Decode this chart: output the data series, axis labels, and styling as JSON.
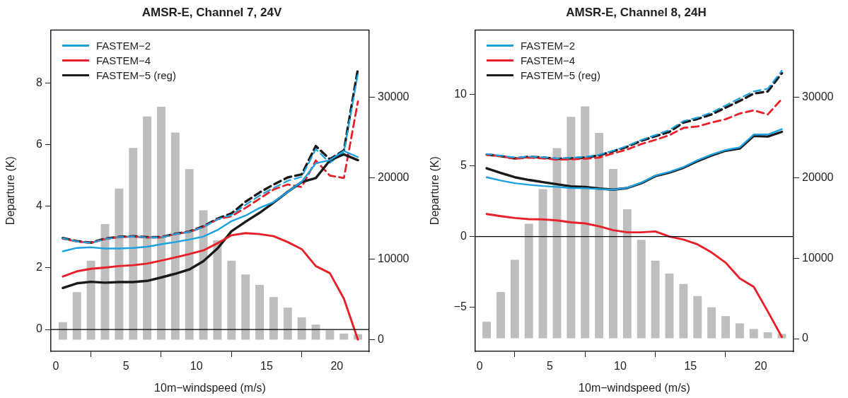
{
  "chart_data": [
    {
      "type": "line",
      "title": "AMSR-E, Channel 7, 24V",
      "xlabel": "10m−windspeed (m/s)",
      "ylabel": "Departure (K)",
      "x": [
        0.5,
        1.5,
        2.5,
        3.5,
        4.5,
        5.5,
        6.5,
        7.5,
        8.5,
        9.5,
        10.5,
        11.5,
        12.5,
        13.5,
        14.5,
        15.5,
        16.5,
        17.5,
        18.5,
        19.5,
        20.5,
        21.5
      ],
      "xlim": [
        -0.35,
        22.3
      ],
      "xticks": [
        0,
        5,
        10,
        15,
        20
      ],
      "ylim": [
        -0.71,
        9.73
      ],
      "yticks": [
        0,
        2,
        4,
        6,
        8
      ],
      "y2lim": [
        -1400,
        38270
      ],
      "y2ticks": [
        0,
        10000,
        20000,
        30000
      ],
      "grid": false,
      "marker": "none",
      "legend": "top left",
      "ref_lines": [
        {
          "axis": "y",
          "value": 0,
          "color": "#000000"
        }
      ],
      "series": [
        {
          "type": "bar",
          "axis": "y2",
          "color": "#bebebe",
          "values": [
            2200,
            5900,
            9800,
            14300,
            18700,
            23700,
            27600,
            28800,
            25600,
            21100,
            16000,
            12300,
            9800,
            8100,
            6800,
            5300,
            4000,
            2800,
            1900,
            1200,
            800,
            700
          ]
        },
        {
          "name": "FASTEM−2",
          "color": "#1ba1e2",
          "line_style": "solid",
          "values": [
            2.54,
            2.65,
            2.67,
            2.63,
            2.63,
            2.65,
            2.69,
            2.77,
            2.84,
            2.92,
            3.02,
            3.23,
            3.52,
            3.7,
            3.95,
            4.14,
            4.47,
            4.8,
            5.4,
            5.5,
            5.8,
            5.6
          ]
        },
        {
          "name": "FASTEM−4",
          "color": "#e8202a",
          "line_style": "solid",
          "values": [
            1.72,
            1.89,
            1.97,
            2.01,
            2.06,
            2.09,
            2.14,
            2.24,
            2.34,
            2.45,
            2.57,
            2.8,
            3.06,
            3.13,
            3.1,
            3.03,
            2.84,
            2.61,
            2.06,
            1.83,
            1.0,
            -0.33
          ]
        },
        {
          "name": "FASTEM−5 (reg)",
          "color": "#1a1a1a",
          "line_style": "solid",
          "values": [
            1.35,
            1.5,
            1.55,
            1.52,
            1.54,
            1.54,
            1.58,
            1.69,
            1.81,
            1.95,
            2.22,
            2.63,
            3.19,
            3.5,
            3.79,
            4.12,
            4.47,
            4.79,
            4.92,
            5.49,
            5.69,
            5.5
          ]
        },
        {
          "color": "#1ba1e2",
          "line_style": "dashed",
          "values": [
            2.96,
            2.86,
            2.81,
            2.94,
            3.0,
            3.02,
            2.99,
            2.99,
            3.1,
            3.17,
            3.33,
            3.58,
            3.72,
            4.05,
            4.35,
            4.6,
            4.83,
            4.96,
            5.86,
            5.41,
            5.77,
            8.31
          ]
        },
        {
          "color": "#e8202a",
          "line_style": "dashed",
          "values": [
            2.95,
            2.86,
            2.81,
            2.94,
            3.0,
            3.02,
            2.99,
            2.99,
            3.1,
            3.17,
            3.33,
            3.58,
            3.68,
            3.95,
            4.25,
            4.55,
            4.71,
            4.63,
            5.49,
            5.0,
            4.92,
            7.41
          ]
        },
        {
          "color": "#1a1a1a",
          "line_style": "dashed",
          "values": [
            2.97,
            2.87,
            2.82,
            2.95,
            3.01,
            3.03,
            3.0,
            3.0,
            3.11,
            3.18,
            3.35,
            3.6,
            3.77,
            4.15,
            4.45,
            4.71,
            4.94,
            5.04,
            5.96,
            5.53,
            5.82,
            8.47
          ]
        }
      ]
    },
    {
      "type": "line",
      "title": "AMSR-E, Channel 8, 24H",
      "xlabel": "10m−windspeed (m/s)",
      "ylabel": "Departure (K)",
      "x": [
        0.5,
        1.5,
        2.5,
        3.5,
        4.5,
        5.5,
        6.5,
        7.5,
        8.5,
        9.5,
        10.5,
        11.5,
        12.5,
        13.5,
        14.5,
        15.5,
        16.5,
        17.5,
        18.5,
        19.5,
        20.5,
        21.5
      ],
      "xlim": [
        -0.31,
        22.33
      ],
      "xticks": [
        0,
        5,
        10,
        15,
        20
      ],
      "ylim": [
        -8.09,
        14.56
      ],
      "yticks": [
        -5,
        0,
        5,
        10
      ],
      "y2lim": [
        -1580,
        38400
      ],
      "y2ticks": [
        0,
        10000,
        20000,
        30000
      ],
      "grid": false,
      "marker": "none",
      "legend": "top left",
      "ref_lines": [
        {
          "axis": "y",
          "value": 0,
          "color": "#000000"
        }
      ],
      "series": [
        {
          "type": "bar",
          "axis": "y2",
          "color": "#bebebe",
          "values": [
            2100,
            5800,
            9800,
            14300,
            18600,
            23700,
            27600,
            28900,
            25600,
            21100,
            16100,
            12300,
            9700,
            8100,
            6800,
            5300,
            3900,
            2800,
            1900,
            1200,
            800,
            600
          ]
        },
        {
          "name": "FASTEM−2",
          "color": "#1ba1e2",
          "line_style": "solid",
          "values": [
            4.18,
            3.95,
            3.76,
            3.65,
            3.56,
            3.5,
            3.42,
            3.4,
            3.35,
            3.31,
            3.44,
            3.8,
            4.3,
            4.56,
            4.9,
            5.38,
            5.78,
            6.1,
            6.29,
            7.19,
            7.19,
            7.57
          ]
        },
        {
          "name": "FASTEM−4",
          "color": "#e8202a",
          "line_style": "solid",
          "values": [
            1.59,
            1.44,
            1.31,
            1.23,
            1.21,
            1.14,
            1.0,
            0.93,
            0.72,
            0.45,
            0.3,
            0.3,
            0.36,
            0.0,
            -0.21,
            -0.55,
            -1.12,
            -1.84,
            -2.95,
            -3.54,
            -5.28,
            -7.08
          ]
        },
        {
          "name": "FASTEM−5 (reg)",
          "color": "#1a1a1a",
          "line_style": "solid",
          "values": [
            4.81,
            4.49,
            4.18,
            3.99,
            3.84,
            3.69,
            3.54,
            3.5,
            3.38,
            3.31,
            3.42,
            3.76,
            4.26,
            4.51,
            4.85,
            5.32,
            5.72,
            6.05,
            6.2,
            7.09,
            7.05,
            7.38
          ]
        },
        {
          "color": "#1ba1e2",
          "line_style": "dashed",
          "values": [
            5.82,
            5.7,
            5.57,
            5.63,
            5.59,
            5.51,
            5.55,
            5.61,
            5.76,
            6.05,
            6.39,
            6.81,
            7.15,
            7.51,
            8.14,
            8.38,
            8.75,
            9.24,
            9.75,
            10.23,
            10.42,
            11.69
          ]
        },
        {
          "color": "#e8202a",
          "line_style": "dashed",
          "values": [
            5.76,
            5.67,
            5.48,
            5.57,
            5.51,
            5.42,
            5.44,
            5.48,
            5.57,
            5.86,
            6.14,
            6.52,
            6.81,
            7.15,
            7.66,
            7.76,
            8.04,
            8.27,
            8.67,
            8.9,
            8.61,
            9.7
          ]
        },
        {
          "color": "#1a1a1a",
          "line_style": "dashed",
          "values": [
            5.78,
            5.67,
            5.51,
            5.63,
            5.57,
            5.48,
            5.51,
            5.57,
            5.72,
            6.01,
            6.33,
            6.75,
            7.07,
            7.38,
            8.04,
            8.29,
            8.61,
            9.09,
            9.56,
            10.08,
            10.23,
            11.52
          ]
        }
      ]
    }
  ]
}
